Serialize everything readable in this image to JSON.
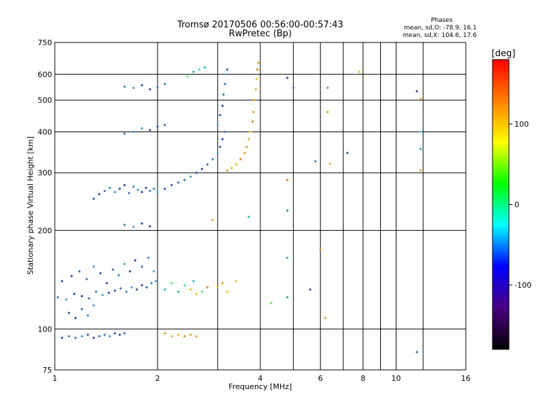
{
  "chart_data": {
    "type": "scatter",
    "title": "Tromsø 20170506 00:56:00-00:57:43",
    "subtitle": "RwPretec (Bp)",
    "xlabel": "Frequency [MHz]",
    "ylabel": "Stationary phase Virtual Height [km]",
    "x_scale": "log",
    "y_scale": "log",
    "xlim": [
      1,
      16
    ],
    "ylim": [
      75,
      750
    ],
    "xticks": [
      1,
      2,
      4,
      6,
      8,
      10,
      16
    ],
    "xgrid": [
      2,
      3,
      4,
      5,
      6,
      7,
      8,
      9,
      10,
      12
    ],
    "yticks": [
      75,
      100,
      200,
      300,
      400,
      500,
      600,
      750
    ],
    "ygrid": [
      100,
      200,
      300,
      400,
      500,
      600
    ],
    "grid": true,
    "stats": {
      "heading": "Phases",
      "line_o": "mean, sd,O: -78.9, 16.1",
      "line_x": "mean, sd,X: 104.6, 17.6"
    },
    "colorbar": {
      "label": "[deg]",
      "range": [
        -180,
        180
      ],
      "ticks": [
        100,
        0,
        -100
      ],
      "colors": [
        "#ff0000",
        "#ff8000",
        "#ffff00",
        "#00ff00",
        "#00ffff",
        "#0000ff",
        "#4b0082",
        "#000000"
      ]
    },
    "series": [
      {
        "values": [
          [
            1.05,
            94
          ],
          [
            1.1,
            95
          ],
          [
            1.15,
            94
          ],
          [
            1.2,
            95
          ],
          [
            1.25,
            96
          ],
          [
            1.3,
            94
          ],
          [
            1.35,
            95
          ],
          [
            1.4,
            96
          ],
          [
            1.45,
            95
          ],
          [
            1.5,
            97
          ],
          [
            1.55,
            96
          ],
          [
            1.6,
            97
          ],
          [
            1.02,
            125
          ],
          [
            1.08,
            123
          ],
          [
            1.14,
            128
          ],
          [
            1.2,
            126
          ],
          [
            1.26,
            124
          ],
          [
            1.32,
            130
          ],
          [
            1.38,
            127
          ],
          [
            1.44,
            129
          ],
          [
            1.5,
            131
          ],
          [
            1.56,
            133
          ],
          [
            1.62,
            130
          ],
          [
            1.68,
            134
          ],
          [
            1.74,
            132
          ],
          [
            1.8,
            136
          ],
          [
            1.86,
            134
          ],
          [
            1.92,
            138
          ],
          [
            1.98,
            140
          ],
          [
            1.05,
            140
          ],
          [
            1.12,
            145
          ],
          [
            1.18,
            150
          ],
          [
            1.24,
            142
          ],
          [
            1.3,
            155
          ],
          [
            1.36,
            148
          ],
          [
            1.42,
            138
          ],
          [
            1.48,
            152
          ],
          [
            1.54,
            146
          ],
          [
            1.6,
            158
          ],
          [
            1.66,
            150
          ],
          [
            1.72,
            162
          ],
          [
            1.8,
            155
          ],
          [
            1.88,
            165
          ],
          [
            1.95,
            150
          ],
          [
            1.1,
            112
          ],
          [
            1.15,
            108
          ],
          [
            1.2,
            115
          ],
          [
            1.25,
            110
          ],
          [
            1.3,
            118
          ],
          [
            1.3,
            250
          ],
          [
            1.35,
            258
          ],
          [
            1.4,
            264
          ],
          [
            1.45,
            270
          ],
          [
            1.5,
            262
          ],
          [
            1.55,
            268
          ],
          [
            1.6,
            275
          ],
          [
            1.65,
            260
          ],
          [
            1.7,
            272
          ],
          [
            1.75,
            266
          ],
          [
            1.8,
            262
          ],
          [
            1.85,
            270
          ],
          [
            1.9,
            264
          ],
          [
            1.95,
            268
          ],
          [
            2.0,
            262
          ],
          [
            2.1,
            268
          ],
          [
            2.2,
            275
          ],
          [
            2.3,
            280
          ],
          [
            2.4,
            285
          ],
          [
            2.5,
            292
          ],
          [
            2.6,
            300
          ],
          [
            2.7,
            308
          ],
          [
            2.8,
            318
          ],
          [
            2.9,
            330
          ],
          [
            3.0,
            345
          ],
          [
            3.05,
            360
          ],
          [
            3.1,
            380
          ],
          [
            3.15,
            400
          ],
          [
            1.6,
            208
          ],
          [
            1.7,
            205
          ],
          [
            1.8,
            210
          ],
          [
            1.9,
            206
          ],
          [
            1.6,
            395
          ],
          [
            1.7,
            400
          ],
          [
            1.8,
            410
          ],
          [
            1.9,
            405
          ],
          [
            2.0,
            415
          ],
          [
            2.1,
            420
          ],
          [
            1.6,
            550
          ],
          [
            1.7,
            545
          ],
          [
            1.8,
            555
          ],
          [
            1.9,
            540
          ],
          [
            2.0,
            548
          ],
          [
            2.1,
            560
          ],
          [
            3.0,
            420
          ],
          [
            3.05,
            450
          ],
          [
            3.1,
            480
          ],
          [
            3.12,
            520
          ],
          [
            3.15,
            560
          ],
          [
            3.18,
            600
          ],
          [
            3.2,
            620
          ],
          [
            4.8,
            585
          ],
          [
            5.0,
            545
          ],
          [
            5.8,
            325
          ],
          [
            6.3,
            545
          ],
          [
            7.2,
            345
          ],
          [
            11.5,
            532
          ],
          [
            11.5,
            85
          ],
          [
            4.8,
            230
          ],
          [
            4.8,
            165
          ],
          [
            5.6,
            132
          ]
        ]
      },
      {
        "values": [
          [
            3.2,
            305
          ],
          [
            3.3,
            310
          ],
          [
            3.4,
            318
          ],
          [
            3.5,
            330
          ],
          [
            3.6,
            345
          ],
          [
            3.65,
            360
          ],
          [
            3.7,
            380
          ],
          [
            3.75,
            400
          ],
          [
            3.8,
            430
          ],
          [
            3.82,
            460
          ],
          [
            3.85,
            500
          ],
          [
            3.88,
            540
          ],
          [
            3.9,
            580
          ],
          [
            3.92,
            620
          ],
          [
            3.95,
            650
          ],
          [
            2.1,
            97
          ],
          [
            2.2,
            95
          ],
          [
            2.3,
            96
          ],
          [
            2.4,
            95
          ],
          [
            2.5,
            96
          ],
          [
            2.6,
            95
          ],
          [
            2.5,
            132
          ],
          [
            2.6,
            128
          ],
          [
            2.8,
            134
          ],
          [
            3.0,
            135
          ],
          [
            3.1,
            138
          ],
          [
            3.2,
            130
          ],
          [
            3.4,
            140
          ],
          [
            4.8,
            285
          ],
          [
            6.2,
            108
          ],
          [
            6.3,
            460
          ],
          [
            6.4,
            320
          ],
          [
            7.8,
            610
          ],
          [
            6.0,
            175
          ],
          [
            2.9,
            215
          ],
          [
            11.8,
            305
          ],
          [
            11.8,
            505
          ]
        ]
      },
      {
        "values": [
          [
            2.1,
            132
          ],
          [
            2.2,
            138
          ],
          [
            2.3,
            130
          ],
          [
            2.4,
            136
          ],
          [
            2.55,
            140
          ],
          [
            2.7,
            130
          ],
          [
            2.55,
            610
          ],
          [
            2.65,
            620
          ],
          [
            2.75,
            630
          ],
          [
            2.45,
            590
          ],
          [
            11.8,
            355
          ],
          [
            11.8,
            400
          ],
          [
            3.7,
            220
          ],
          [
            4.3,
            120
          ],
          [
            4.8,
            125
          ]
        ]
      }
    ]
  }
}
